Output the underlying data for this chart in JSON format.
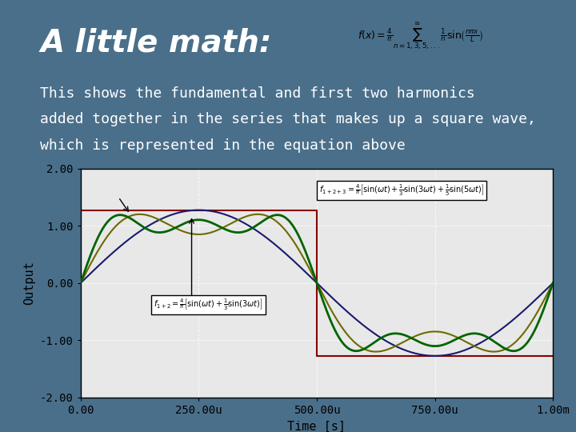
{
  "title": "A little math:",
  "subtitle_line1": "This shows the fundamental and first two harmonics",
  "subtitle_line2": "added together in the series that makes up a square wave,",
  "subtitle_line3": "which is represented in the equation above",
  "bg_color": "#4a6f8a",
  "plot_bg_color": "#e8e8e8",
  "title_color": "white",
  "text_color": "white",
  "xlabel": "Time [s]",
  "ylabel": "Output",
  "ylim": [
    -2.0,
    2.0
  ],
  "xlim": [
    0,
    0.001
  ],
  "yticks": [
    -2.0,
    -1.0,
    0.0,
    1.0,
    2.0
  ],
  "xtick_labels": [
    "0.00",
    "250.00u",
    "500.00u",
    "750.00u",
    "1.00m"
  ],
  "ytick_labels": [
    "-2.00",
    "-1.00",
    "0.00",
    "1.00",
    "2.00"
  ],
  "color_f1": "#1a1a6e",
  "color_f12": "#6b6b00",
  "color_f123": "#006400",
  "color_square": "#8b0000",
  "title_fontsize": 28,
  "subtitle_fontsize": 13,
  "axis_fontsize": 10
}
